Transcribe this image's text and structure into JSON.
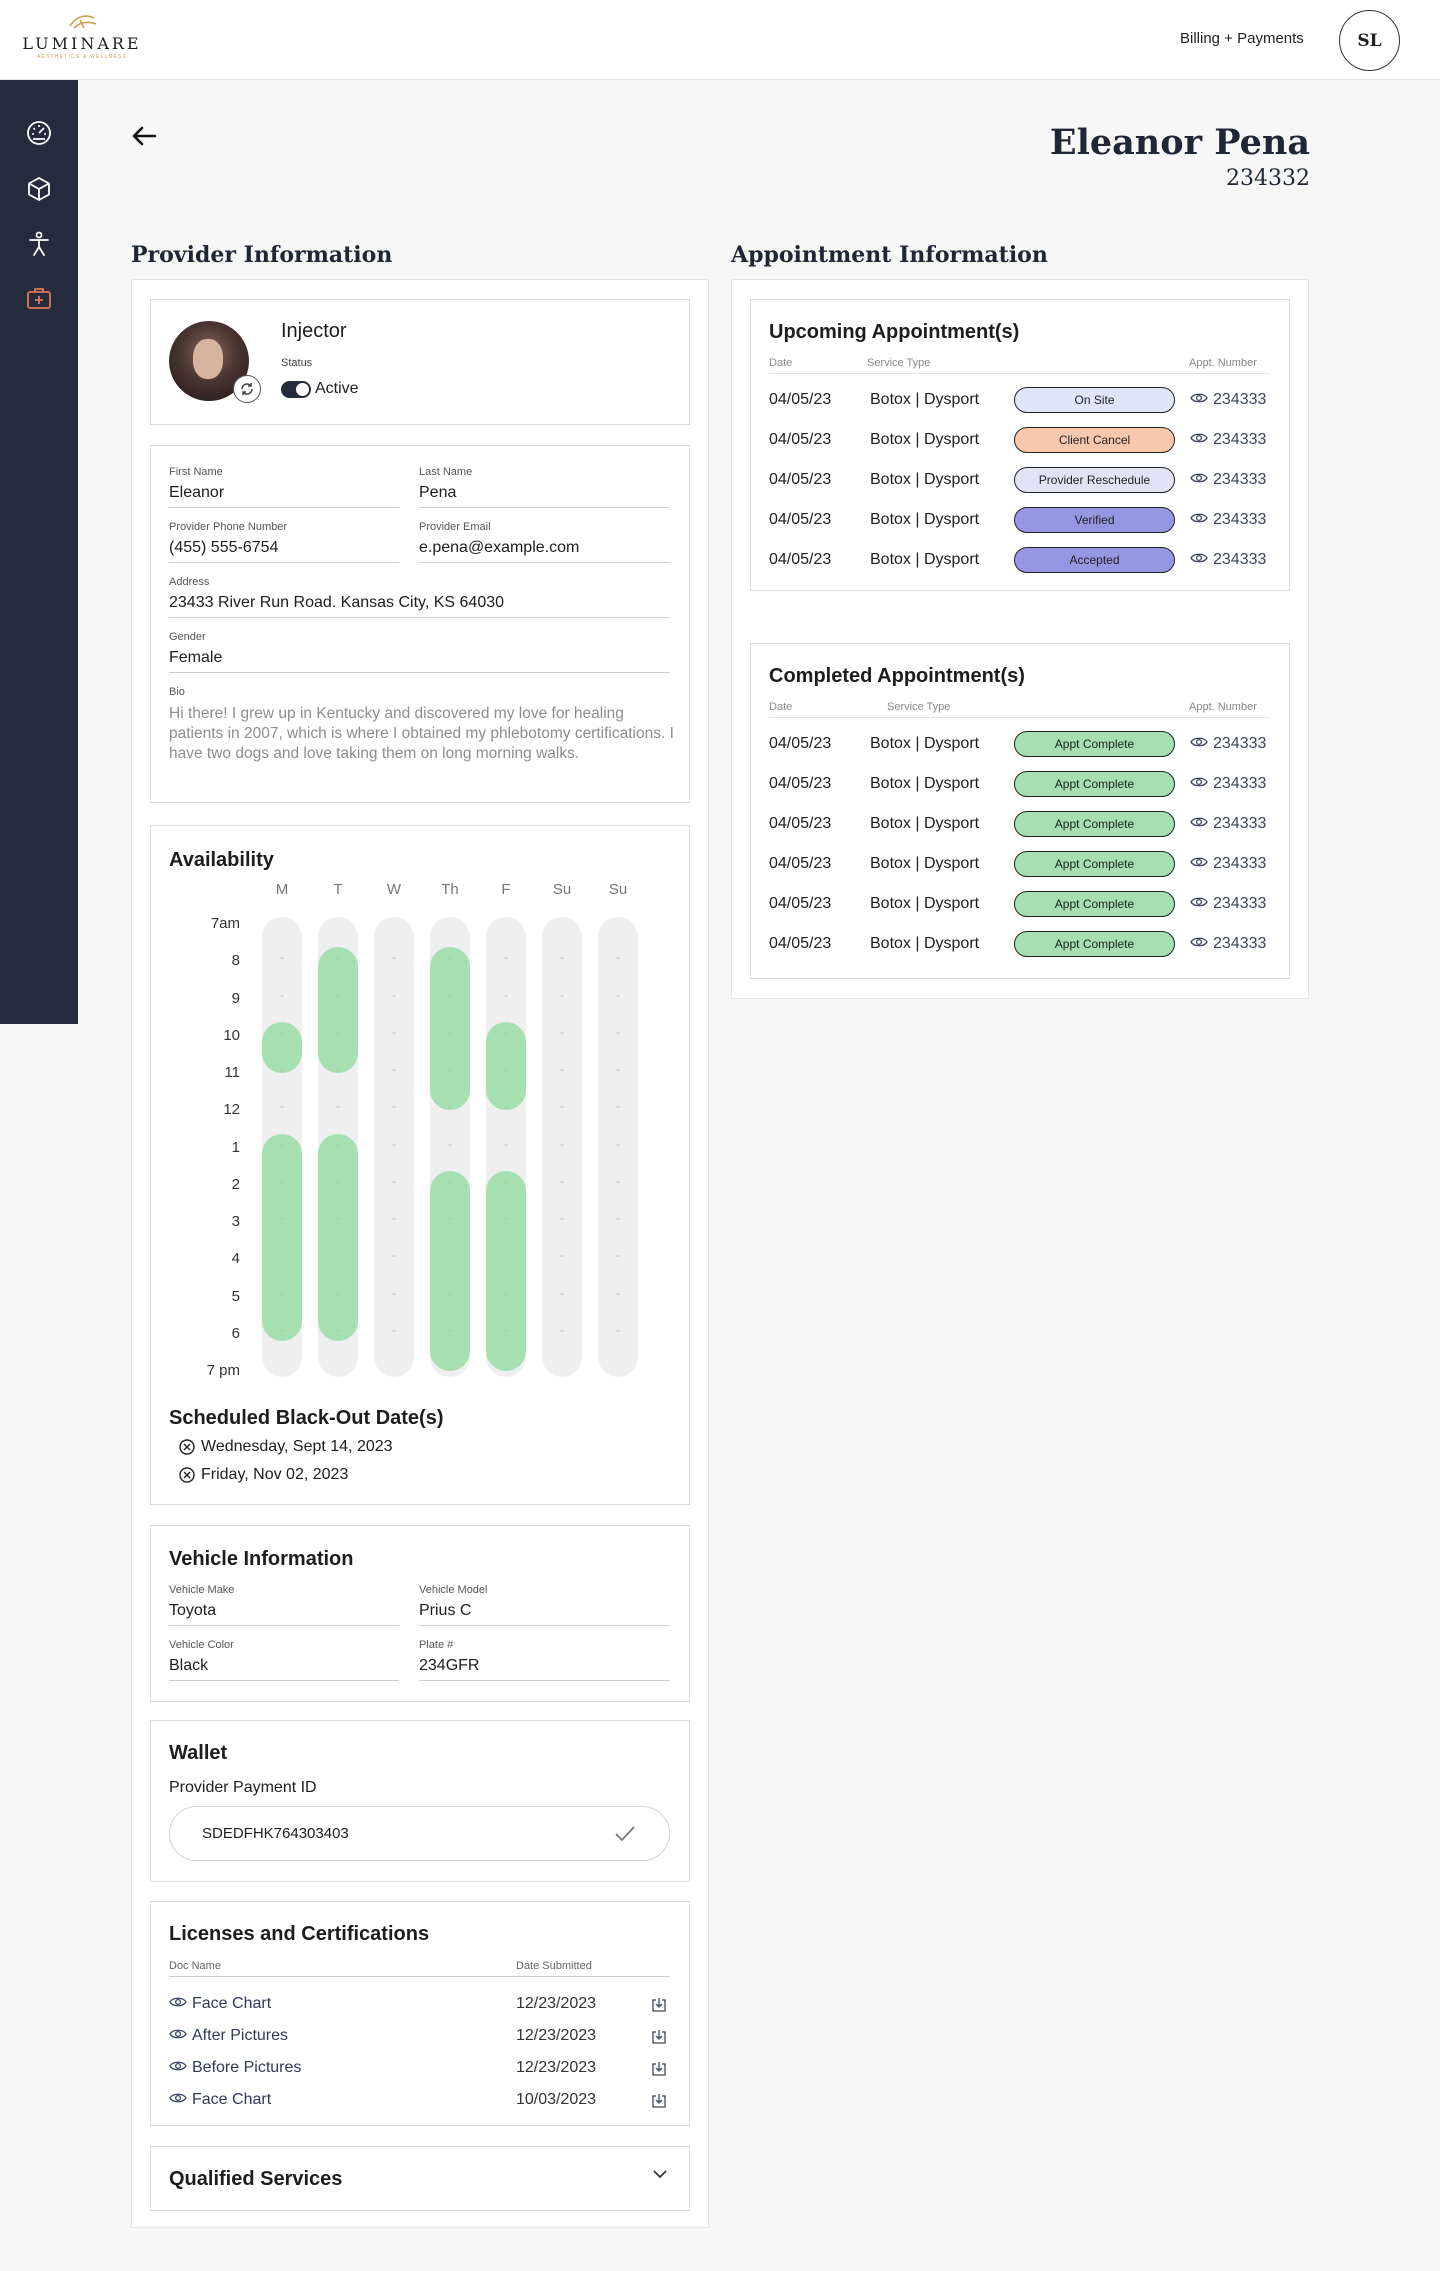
{
  "brand": {
    "name": "LUMINARE",
    "tagline": "AESTHETICS & WELLNESS"
  },
  "topbar": {
    "billing_label": "Billing + Payments",
    "user_initials": "SL"
  },
  "sidebar": {
    "items": [
      {
        "icon": "dashboard-gauge-icon"
      },
      {
        "icon": "box-icon"
      },
      {
        "icon": "person-icon"
      },
      {
        "icon": "medical-kit-icon",
        "active_color": "#e0775a"
      }
    ]
  },
  "provider": {
    "name": "Eleanor Pena",
    "id": "234332"
  },
  "sections": {
    "provider_info": "Provider Information",
    "appointment_info": "Appointment Information"
  },
  "profile": {
    "role": "Injector",
    "status_label": "Status",
    "status_value": "Active"
  },
  "details": {
    "first_name_label": "First Name",
    "first_name": "Eleanor",
    "last_name_label": "Last Name",
    "last_name": "Pena",
    "phone_label": "Provider Phone Number",
    "phone": "(455) 555-6754",
    "email_label": "Provider Email",
    "email": "e.pena@example.com",
    "address_label": "Address",
    "address": "23433 River Run Road. Kansas City, KS 64030",
    "gender_label": "Gender",
    "gender": "Female",
    "bio_label": "Bio",
    "bio": "Hi there! I grew up in Kentucky and discovered my love for healing patients in 2007, which is where I obtained my phlebotomy certifications. I have two dogs and love taking them on long morning walks."
  },
  "availability": {
    "title": "Availability",
    "days": [
      "M",
      "T",
      "W",
      "Th",
      "F",
      "Su",
      "Su"
    ],
    "hours": [
      "7am",
      "8",
      "9",
      "10",
      "11",
      "12",
      "1",
      "2",
      "3",
      "4",
      "5",
      "6",
      "7 pm"
    ],
    "available_blocks": [
      [
        [
          10,
          11
        ],
        [
          13,
          18.2
        ]
      ],
      [
        [
          8,
          11
        ],
        [
          13,
          18.2
        ]
      ],
      [],
      [
        [
          8,
          12
        ],
        [
          14,
          19
        ]
      ],
      [
        [
          10,
          12
        ],
        [
          14,
          19
        ]
      ],
      [],
      []
    ],
    "fill_color": "#a6e0b1",
    "blackout_title": "Scheduled Black-Out Date(s)",
    "blackout_dates": [
      "Wednesday, Sept 14, 2023",
      "Friday, Nov 02, 2023"
    ]
  },
  "vehicle": {
    "title": "Vehicle Information",
    "make_label": "Vehicle Make",
    "make": "Toyota",
    "model_label": "Vehicle Model",
    "model": "Prius C",
    "color_label": "Vehicle Color",
    "color": "Black",
    "plate_label": "Plate #",
    "plate": "234GFR"
  },
  "wallet": {
    "title": "Wallet",
    "payment_id_label": "Provider Payment ID",
    "payment_id": "SDEDFHK764303403"
  },
  "licenses": {
    "title": "Licenses and Certifications",
    "col_doc": "Doc Name",
    "col_date": "Date Submitted",
    "rows": [
      {
        "name": "Face Chart",
        "date": "12/23/2023"
      },
      {
        "name": "After Pictures",
        "date": "12/23/2023"
      },
      {
        "name": "Before Pictures",
        "date": "12/23/2023"
      },
      {
        "name": "Face Chart",
        "date": "10/03/2023"
      }
    ]
  },
  "qualified_services": {
    "title": "Qualified Services"
  },
  "upcoming": {
    "title": "Upcoming Appointment(s)",
    "col_date": "Date",
    "col_service": "Service Type",
    "col_number": "Appt. Number",
    "rows": [
      {
        "date": "04/05/23",
        "service": "Botox | Dysport",
        "status": "On Site",
        "color": "#dfe6fb",
        "number": "234333"
      },
      {
        "date": "04/05/23",
        "service": "Botox | Dysport",
        "status": "Client Cancel",
        "color": "#f9c7ad",
        "number": "234333"
      },
      {
        "date": "04/05/23",
        "service": "Botox | Dysport",
        "status": "Provider Reschedule",
        "color": "#e3e3f7",
        "number": "234333"
      },
      {
        "date": "04/05/23",
        "service": "Botox | Dysport",
        "status": "Verified",
        "color": "#9597e2",
        "number": "234333"
      },
      {
        "date": "04/05/23",
        "service": "Botox | Dysport",
        "status": "Accepted",
        "color": "#9597e2",
        "number": "234333"
      }
    ]
  },
  "completed": {
    "title": "Completed Appointment(s)",
    "col_date": "Date",
    "col_service": "Service Type",
    "col_number": "Appt. Number",
    "rows": [
      {
        "date": "04/05/23",
        "service": "Botox | Dysport",
        "status": "Appt Complete",
        "color": "#a6e0b1",
        "number": "234333"
      },
      {
        "date": "04/05/23",
        "service": "Botox | Dysport",
        "status": "Appt Complete",
        "color": "#a6e0b1",
        "number": "234333"
      },
      {
        "date": "04/05/23",
        "service": "Botox | Dysport",
        "status": "Appt Complete",
        "color": "#a6e0b1",
        "number": "234333"
      },
      {
        "date": "04/05/23",
        "service": "Botox | Dysport",
        "status": "Appt Complete",
        "color": "#a6e0b1",
        "number": "234333"
      },
      {
        "date": "04/05/23",
        "service": "Botox | Dysport",
        "status": "Appt Complete",
        "color": "#a6e0b1",
        "number": "234333"
      },
      {
        "date": "04/05/23",
        "service": "Botox | Dysport",
        "status": "Appt Complete",
        "color": "#a6e0b1",
        "number": "234333"
      }
    ]
  }
}
